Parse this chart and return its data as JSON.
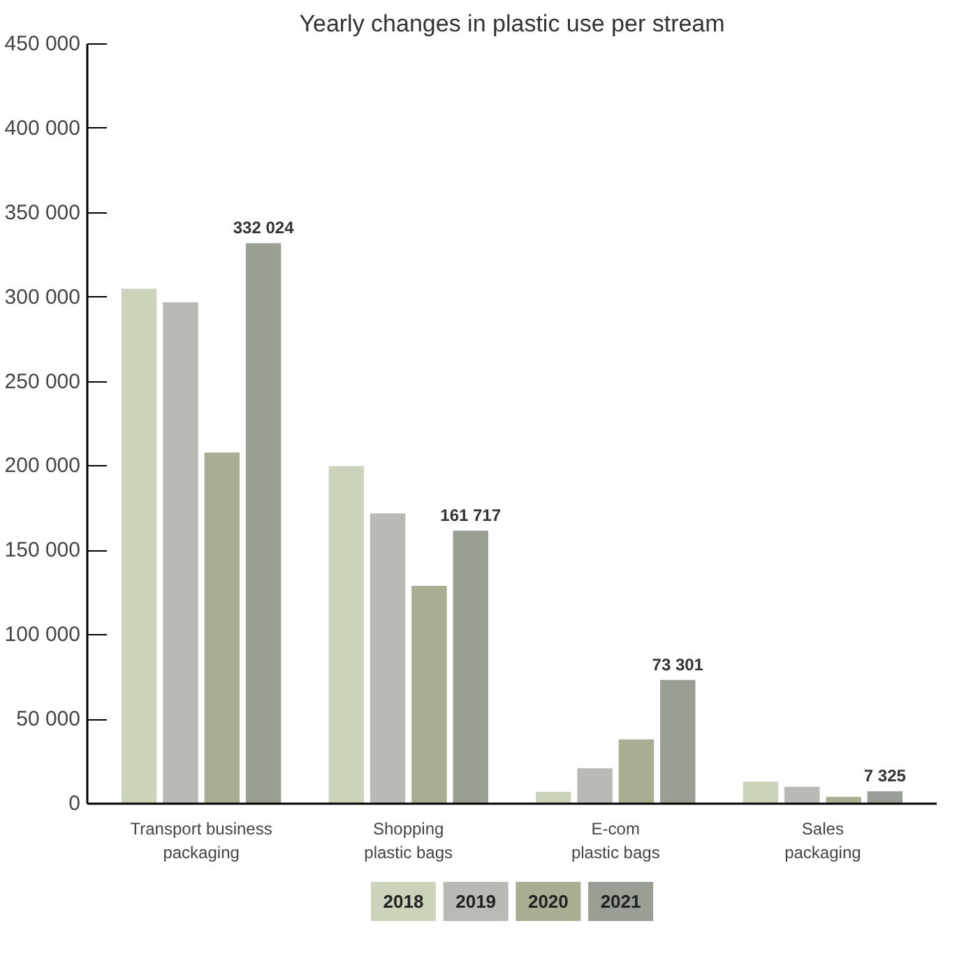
{
  "chart_data": {
    "type": "bar",
    "title": "Yearly changes in plastic use per stream",
    "categories": [
      "Transport business\npackaging",
      "Shopping\nplastic bags",
      "E-com\nplastic bags",
      "Sales\npackaging"
    ],
    "series": [
      {
        "name": "2018",
        "color": "#cbd4bb",
        "values": [
          305000,
          200000,
          7000,
          13000
        ]
      },
      {
        "name": "2019",
        "color": "#b8bbb3",
        "values": [
          297000,
          172000,
          21000,
          10000
        ]
      },
      {
        "name": "2020",
        "color": "#a8ae92",
        "values": [
          208000,
          129000,
          38000,
          4000
        ]
      },
      {
        "name": "2021",
        "color": "#999f94",
        "values": [
          332024,
          161717,
          73301,
          7325
        ],
        "value_labels": [
          "332 024",
          "161 717",
          "73 301",
          "7 325"
        ]
      }
    ],
    "ylim": [
      0,
      450000
    ],
    "yticks": [
      {
        "value": 0,
        "label": "0"
      },
      {
        "value": 50000,
        "label": "50 000"
      },
      {
        "value": 100000,
        "label": "100 000"
      },
      {
        "value": 150000,
        "label": "150 000"
      },
      {
        "value": 200000,
        "label": "200 000"
      },
      {
        "value": 250000,
        "label": "250 000"
      },
      {
        "value": 300000,
        "label": "300 000"
      },
      {
        "value": 350000,
        "label": "350 000"
      },
      {
        "value": 400000,
        "label": "400 000"
      },
      {
        "value": 450000,
        "label": "450 000"
      }
    ],
    "grid": false,
    "legend": "bottom"
  }
}
